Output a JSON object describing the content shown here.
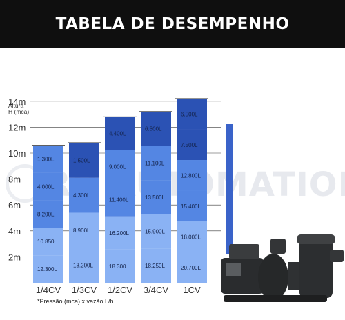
{
  "header": {
    "title": "TABELA DE DESEMPENHO"
  },
  "watermark": {
    "text": "RV AUTOMATION"
  },
  "footnote": "*Pressão (mca) x vazão L/h",
  "colors": {
    "header_bg": "#0f0f0f",
    "dark": "#2b52b4",
    "mid": "#5486e3",
    "light": "#8ab2f4",
    "accent": "#3a63c9"
  },
  "chart_data": {
    "type": "bar",
    "ylabel": "Altura H (mca)",
    "yticks": [
      "14m",
      "12m",
      "10m",
      "8m",
      "6m",
      "4m",
      "2m"
    ],
    "categories": [
      "1/4CV",
      "1/3CV",
      "1/2CV",
      "3/4CV",
      "1CV"
    ],
    "heights": [
      10.6,
      10.8,
      12.8,
      13.2,
      14.2
    ],
    "segments": [
      [
        {
          "label": "12.300L",
          "level": 2
        },
        {
          "label": "10.850L",
          "level": 2
        },
        {
          "label": "8.200L",
          "level": 1
        },
        {
          "label": "4.000L",
          "level": 1
        },
        {
          "label": "1.300L",
          "level": 1
        }
      ],
      [
        {
          "label": "13.200L",
          "level": 2
        },
        {
          "label": "8.900L",
          "level": 2
        },
        {
          "label": "4.300L",
          "level": 1
        },
        {
          "label": "1.500L",
          "level": 0
        }
      ],
      [
        {
          "label": "18.300",
          "level": 2
        },
        {
          "label": "16.200L",
          "level": 2
        },
        {
          "label": "11.400L",
          "level": 1
        },
        {
          "label": "9.000L",
          "level": 1
        },
        {
          "label": "4.400L",
          "level": 0
        }
      ],
      [
        {
          "label": "18.250L",
          "level": 2
        },
        {
          "label": "15.900L",
          "level": 2
        },
        {
          "label": "13.500L",
          "level": 1
        },
        {
          "label": "11.100L",
          "level": 1
        },
        {
          "label": "6.500L",
          "level": 0
        }
      ],
      [
        {
          "label": "20.700L",
          "level": 2
        },
        {
          "label": "18.000L",
          "level": 2
        },
        {
          "label": "15.400L",
          "level": 1
        },
        {
          "label": "12.800L",
          "level": 1
        },
        {
          "label": "7.500L",
          "level": 0
        },
        {
          "label": "6.500L",
          "level": 0
        }
      ]
    ]
  }
}
